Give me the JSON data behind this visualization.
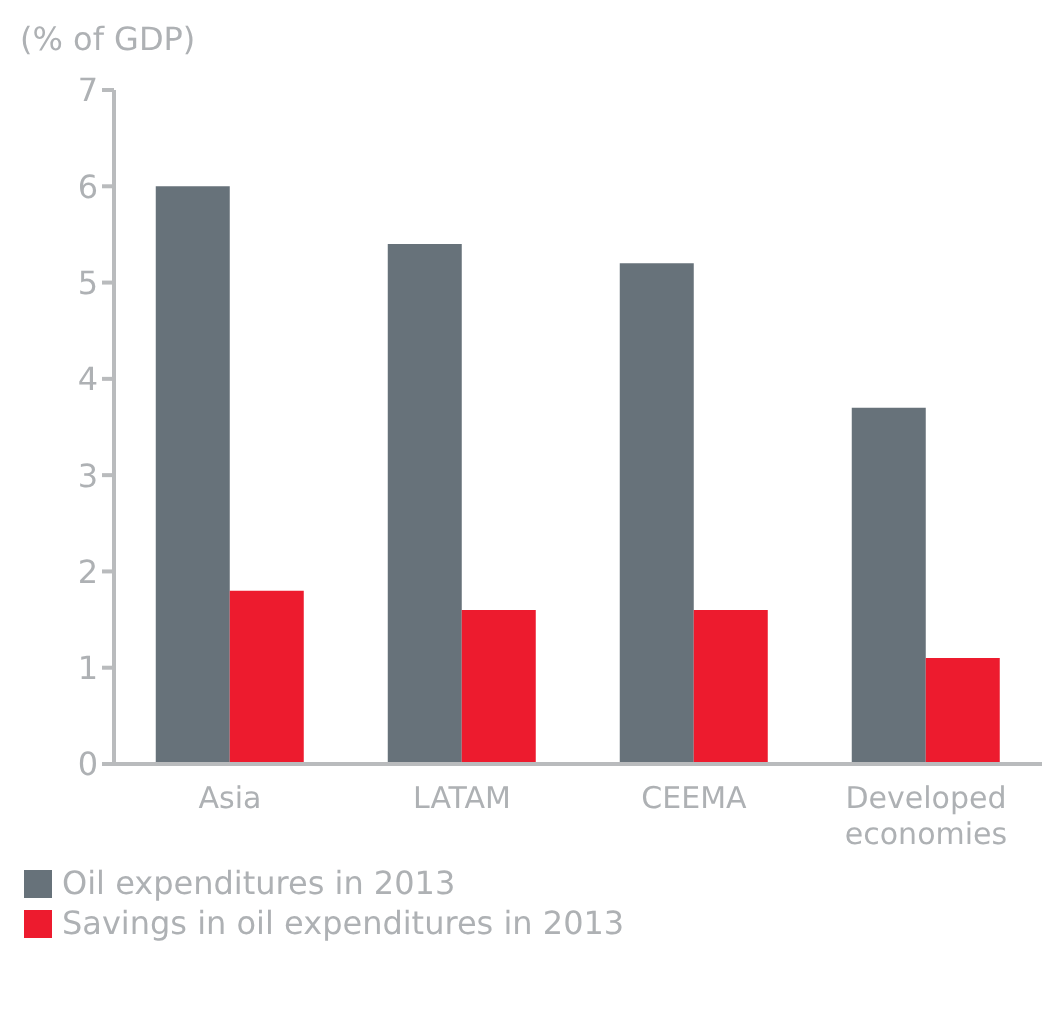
{
  "chart_data": {
    "type": "bar",
    "ylabel": "(% of GDP)",
    "categories": [
      "Asia",
      "LATAM",
      "CEEMA",
      "Developed economies"
    ],
    "series": [
      {
        "name": "Oil expenditures in 2013",
        "color": "#67727a",
        "values": [
          6.0,
          5.4,
          5.2,
          3.7
        ]
      },
      {
        "name": "Savings in oil expenditures in 2013",
        "color": "#ed1b2e",
        "values": [
          1.8,
          1.6,
          1.6,
          1.1
        ]
      }
    ],
    "ylim": [
      0,
      7
    ],
    "yticks": [
      0,
      1,
      2,
      3,
      4,
      5,
      6,
      7
    ],
    "grid": false,
    "legend": "bottom left"
  }
}
